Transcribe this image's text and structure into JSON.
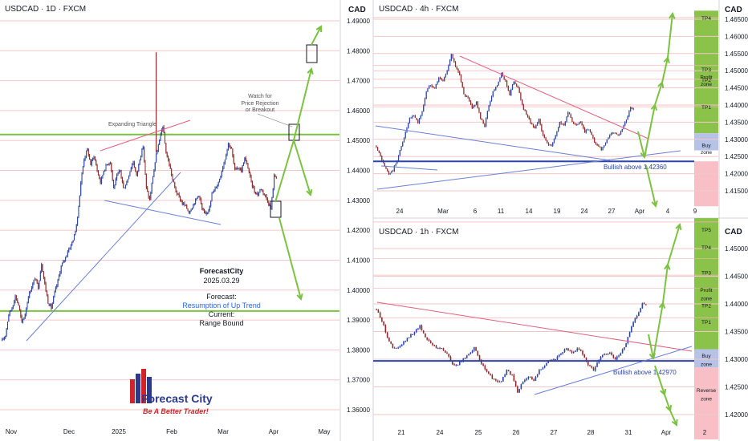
{
  "panels": {
    "daily": {
      "title": "USDCAD · 1D · FXCM",
      "currency": "CAD",
      "y_ticks": [
        "1.49000",
        "1.48000",
        "1.47000",
        "1.46000",
        "1.45000",
        "1.44000",
        "1.43000",
        "1.42000",
        "1.41000",
        "1.40000",
        "1.39000",
        "1.38000",
        "1.37000",
        "1.36000"
      ],
      "x_ticks": [
        "Nov",
        "Dec",
        "2025",
        "Feb",
        "Mar",
        "Apr",
        "May"
      ],
      "pattern_label": "Expanding Triangle",
      "note": "Watch for Price Rejection or Breakout",
      "brand_name": "ForecastCity",
      "date": "2025.03.29",
      "forecast_label": "Forecast:",
      "forecast_value": "Resumption of Up Trend",
      "current_label": "Current:",
      "current_value": "Range Bound",
      "logo_text": "Forecast City",
      "logo_tagline": "Be A Better Trader!"
    },
    "h4": {
      "title": "USDCAD · 4h · FXCM",
      "currency": "CAD",
      "y_ticks": [
        "1.46500",
        "1.46000",
        "1.45500",
        "1.45000",
        "1.44500",
        "1.44000",
        "1.43500",
        "1.43000",
        "1.42500",
        "1.42000",
        "1.41500"
      ],
      "x_ticks": [
        "24",
        "Mar",
        "6",
        "11",
        "14",
        "19",
        "24",
        "27",
        "Apr",
        "4",
        "9"
      ],
      "level_label": "Bullish above 1.42360",
      "zones": [
        "TP4",
        "TP3",
        "Profit zone",
        "TP2",
        "TP1",
        "Buy zone"
      ]
    },
    "h1": {
      "title": "USDCAD · 1h · FXCM",
      "currency": "CAD",
      "y_ticks": [
        "1.45000",
        "1.44500",
        "1.44000",
        "1.43500",
        "1.43000",
        "1.42500",
        "1.42000"
      ],
      "x_ticks": [
        "21",
        "24",
        "25",
        "26",
        "27",
        "28",
        "31",
        "Apr",
        "2"
      ],
      "level_label": "Bullish above 1.42970",
      "zones": [
        "TP5",
        "TP4",
        "TP3",
        "Profit zone",
        "TP2",
        "TP1",
        "Buy zone",
        "Reverse zone"
      ]
    }
  },
  "chart_data": [
    {
      "type": "candlestick",
      "title": "USDCAD · 1D · FXCM",
      "ylim": [
        1.3542,
        1.4938
      ],
      "close_path": [
        1.383,
        1.385,
        1.392,
        1.394,
        1.398,
        1.395,
        1.389,
        1.392,
        1.398,
        1.401,
        1.404,
        1.401,
        1.409,
        1.402,
        1.396,
        1.394,
        1.399,
        1.403,
        1.408,
        1.41,
        1.413,
        1.415,
        1.418,
        1.424,
        1.436,
        1.444,
        1.447,
        1.442,
        1.445,
        1.44,
        1.436,
        1.44,
        1.442,
        1.443,
        1.434,
        1.438,
        1.44,
        1.434,
        1.436,
        1.44,
        1.443,
        1.438,
        1.444,
        1.448,
        1.434,
        1.43,
        1.438,
        1.445,
        1.45,
        1.455,
        1.446,
        1.442,
        1.437,
        1.433,
        1.431,
        1.429,
        1.428,
        1.426,
        1.428,
        1.43,
        1.432,
        1.427,
        1.425,
        1.427,
        1.432,
        1.434,
        1.436,
        1.44,
        1.444,
        1.449,
        1.447,
        1.44,
        1.441,
        1.44,
        1.444,
        1.441,
        1.436,
        1.433,
        1.432,
        1.434,
        1.432,
        1.43,
        1.427,
        1.438
      ],
      "spike_high": 1.4795,
      "levels": [
        1.452,
        1.393
      ],
      "x": [
        "Nov",
        "Dec",
        "2025",
        "Feb",
        "Mar",
        "Apr",
        "May"
      ]
    },
    {
      "type": "candlestick",
      "title": "USDCAD · 4h · FXCM",
      "ylim": [
        1.4105,
        1.4675
      ],
      "close_path": [
        1.428,
        1.425,
        1.422,
        1.42,
        1.421,
        1.424,
        1.428,
        1.432,
        1.436,
        1.437,
        1.435,
        1.438,
        1.444,
        1.446,
        1.445,
        1.448,
        1.447,
        1.45,
        1.455,
        1.451,
        1.449,
        1.443,
        1.442,
        1.439,
        1.441,
        1.436,
        1.434,
        1.44,
        1.444,
        1.446,
        1.449,
        1.447,
        1.443,
        1.447,
        1.445,
        1.44,
        1.437,
        1.435,
        1.433,
        1.436,
        1.431,
        1.429,
        1.428,
        1.431,
        1.435,
        1.434,
        1.438,
        1.435,
        1.434,
        1.435,
        1.432,
        1.433,
        1.43,
        1.428,
        1.427,
        1.429,
        1.431,
        1.432,
        1.431,
        1.433,
        1.436,
        1.439
      ],
      "level": 1.4236,
      "zones": {
        "buy": [
          1.4268,
          1.4318
        ],
        "tp": [
          1.4318,
          1.4675
        ],
        "stop": [
          1.4105,
          1.4236
        ]
      },
      "x": [
        "24",
        "Mar",
        "6",
        "11",
        "14",
        "19",
        "24",
        "27",
        "Apr",
        "4",
        "9"
      ]
    },
    {
      "type": "candlestick",
      "title": "USDCAD · 1h · FXCM",
      "ylim": [
        1.4155,
        1.4555
      ],
      "close_path": [
        1.439,
        1.437,
        1.434,
        1.432,
        1.432,
        1.433,
        1.434,
        1.435,
        1.436,
        1.434,
        1.433,
        1.432,
        1.432,
        1.431,
        1.429,
        1.429,
        1.43,
        1.431,
        1.432,
        1.43,
        1.428,
        1.427,
        1.426,
        1.426,
        1.428,
        1.427,
        1.424,
        1.426,
        1.427,
        1.426,
        1.428,
        1.429,
        1.43,
        1.43,
        1.431,
        1.432,
        1.431,
        1.432,
        1.431,
        1.429,
        1.428,
        1.43,
        1.431,
        1.431,
        1.43,
        1.431,
        1.433,
        1.436,
        1.438,
        1.44
      ],
      "level": 1.4297,
      "zones": {
        "buy": [
          1.4285,
          1.4318
        ],
        "tp": [
          1.4318,
          1.4555
        ],
        "reverse": [
          1.4155,
          1.4285
        ]
      },
      "x": [
        "21",
        "24",
        "25",
        "26",
        "27",
        "28",
        "31",
        "Apr",
        "2"
      ]
    }
  ]
}
